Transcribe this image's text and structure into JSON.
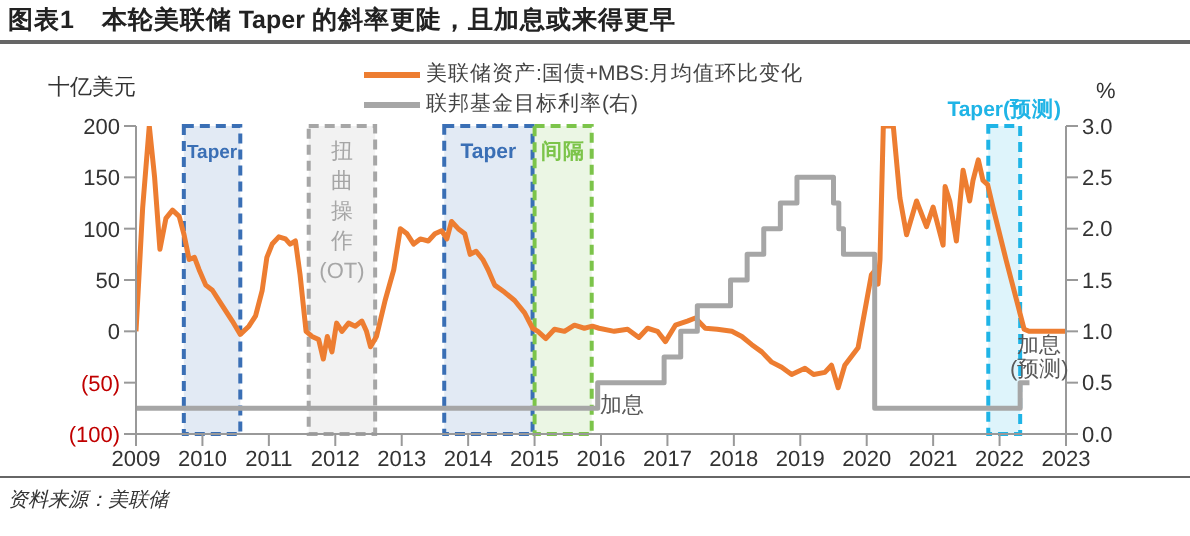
{
  "chart_data": {
    "type": "line",
    "title": "图表1    本轮美联储 Taper 的斜率更陡，且加息或来得更早",
    "ylabel": "十亿美元",
    "y2label": "%",
    "xlim": [
      2009,
      2023
    ],
    "xticks": [
      2009,
      2010,
      2011,
      2012,
      2013,
      2014,
      2015,
      2016,
      2017,
      2018,
      2019,
      2020,
      2021,
      2022,
      2023
    ],
    "ylim": [
      -100,
      200
    ],
    "yticks": [
      {
        "value": -100,
        "label": "(100)"
      },
      {
        "value": -50,
        "label": "(50)"
      },
      0,
      50,
      100,
      150,
      200
    ],
    "y2lim": [
      0,
      3
    ],
    "y2ticks": [
      {
        "value": 0,
        "label": "0.0"
      },
      0.5,
      {
        "value": 1,
        "label": "1.0"
      },
      1.5,
      {
        "value": 2,
        "label": "2.0"
      },
      2.5,
      {
        "value": 3,
        "label": "3.0"
      }
    ],
    "legend": "top",
    "grid": false,
    "series": [
      {
        "name": "美联储资产:国债+MBS:月均值环比变化",
        "type": "line",
        "color": "#ed7d31",
        "x": [
          2009.0,
          2009.1,
          2009.2,
          2009.28,
          2009.36,
          2009.45,
          2009.55,
          2009.65,
          2009.72,
          2009.8,
          2009.88,
          2009.95,
          2010.05,
          2010.15,
          2010.25,
          2010.35,
          2010.45,
          2010.57,
          2010.7,
          2010.8,
          2010.9,
          2010.97,
          2011.05,
          2011.15,
          2011.25,
          2011.32,
          2011.4,
          2011.47,
          2011.56,
          2011.65,
          2011.75,
          2011.82,
          2011.88,
          2011.95,
          2012.02,
          2012.1,
          2012.2,
          2012.3,
          2012.4,
          2012.47,
          2012.53,
          2012.62,
          2012.75,
          2012.88,
          2012.98,
          2013.08,
          2013.18,
          2013.28,
          2013.4,
          2013.5,
          2013.6,
          2013.68,
          2013.75,
          2013.85,
          2013.95,
          2014.03,
          2014.12,
          2014.22,
          2014.3,
          2014.4,
          2014.55,
          2014.7,
          2014.85,
          2014.97,
          2015.05,
          2015.17,
          2015.3,
          2015.45,
          2015.6,
          2015.75,
          2015.87,
          2015.97,
          2016.2,
          2016.4,
          2016.57,
          2016.7,
          2016.85,
          2016.97,
          2017.12,
          2017.3,
          2017.42,
          2017.57,
          2017.75,
          2017.97,
          2018.12,
          2018.27,
          2018.42,
          2018.57,
          2018.72,
          2018.87,
          2019.07,
          2019.2,
          2019.37,
          2019.47,
          2019.57,
          2019.67,
          2019.87,
          2020.0,
          2020.07,
          2020.12,
          2020.17,
          2020.2,
          2020.25,
          2020.4,
          2020.5,
          2020.6,
          2020.75,
          2020.9,
          2021.0,
          2021.15,
          2021.18,
          2021.25,
          2021.35,
          2021.45,
          2021.55,
          2021.6,
          2021.68,
          2021.75,
          2021.82,
          2021.9,
          2022.1,
          2022.37,
          2022.45,
          2023.0
        ],
        "values": [
          0,
          120,
          200,
          150,
          80,
          110,
          118,
          112,
          95,
          70,
          72,
          60,
          45,
          40,
          30,
          20,
          10,
          -3,
          5,
          15,
          40,
          72,
          85,
          92,
          90,
          85,
          88,
          55,
          0,
          -5,
          -8,
          -27,
          -5,
          -20,
          8,
          0,
          8,
          5,
          10,
          0,
          -15,
          -5,
          30,
          60,
          100,
          95,
          85,
          90,
          88,
          95,
          98,
          90,
          107,
          100,
          95,
          75,
          78,
          70,
          60,
          45,
          38,
          30,
          18,
          3,
          0,
          -7,
          2,
          0,
          6,
          3,
          5,
          3,
          0,
          2,
          -6,
          3,
          0,
          -10,
          6,
          10,
          13,
          3,
          2,
          0,
          -5,
          -13,
          -20,
          -30,
          -35,
          -42,
          -36,
          -42,
          -40,
          -33,
          -55,
          -33,
          -16,
          30,
          55,
          59,
          46,
          70,
          200,
          200,
          130,
          94,
          127,
          102,
          121,
          84,
          141,
          127,
          88,
          157,
          127,
          147,
          167,
          147,
          143,
          121,
          69,
          2,
          0,
          0
        ]
      },
      {
        "name": "联邦基金目标利率(右)",
        "type": "step",
        "axis": "y2",
        "color": "#a6a6a6",
        "x": [
          2009,
          2015.95,
          2016.95,
          2017.2,
          2017.45,
          2017.95,
          2018.2,
          2018.45,
          2018.7,
          2018.95,
          2019.5,
          2019.58,
          2019.65,
          2020.12,
          2022.31,
          2022.45
        ],
        "values": [
          0.25,
          0.5,
          0.75,
          1.0,
          1.25,
          1.5,
          1.75,
          2.0,
          2.25,
          2.5,
          2.25,
          2.0,
          1.75,
          0.25,
          0.5,
          0.5
        ]
      }
    ],
    "bands": [
      {
        "axis": "x",
        "from": 2009.72,
        "to": 2010.57,
        "label": "Taper",
        "color": "#3a6fb5"
      },
      {
        "axis": "x",
        "from": 2011.6,
        "to": 2012.6,
        "label": "扭曲操作(OT)",
        "color": "#a6a6a6"
      },
      {
        "axis": "x",
        "from": 2013.64,
        "to": 2014.97,
        "label": "Taper",
        "color": "#3a6fb5"
      },
      {
        "axis": "x",
        "from": 2015.0,
        "to": 2015.86,
        "label": "间隔",
        "color": "#7cc44a"
      },
      {
        "axis": "x",
        "from": 2021.83,
        "to": 2022.31,
        "label": "Taper(预测)",
        "color": "#1fb4e6"
      }
    ],
    "annotations": [
      "加息",
      "加息(预测)",
      "资料来源：美联储"
    ]
  }
}
